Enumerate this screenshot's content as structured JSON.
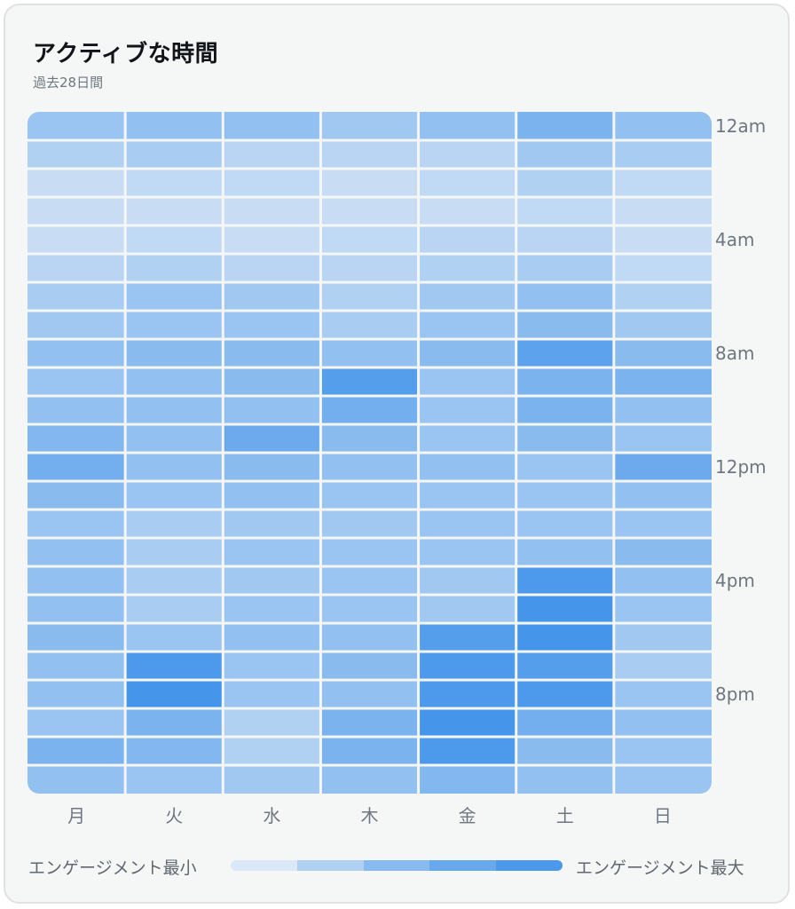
{
  "card": {
    "title": "アクティブな時間",
    "subtitle": "過去28日間"
  },
  "legend": {
    "min_label": "エンゲージメント最小",
    "max_label": "エンゲージメント最大",
    "colors": [
      "#dbe8f7",
      "#b0d0f2",
      "#87baee",
      "#68a8ec",
      "#4c98ea"
    ]
  },
  "colors": {
    "low": "#dfeaf6",
    "high": "#4595ea",
    "axis_text": "#6e7780"
  },
  "chart_data": {
    "type": "heatmap",
    "title": "アクティブな時間",
    "subtitle": "過去28日間",
    "x_categories": [
      "月",
      "火",
      "水",
      "木",
      "金",
      "土",
      "日"
    ],
    "y_tick_labels": [
      "12am",
      "4am",
      "8am",
      "12pm",
      "4pm",
      "8pm"
    ],
    "y_tick_every": 4,
    "value_range": [
      0,
      1
    ],
    "values": [
      [
        0.45,
        0.5,
        0.5,
        0.4,
        0.5,
        0.65,
        0.5
      ],
      [
        0.3,
        0.35,
        0.25,
        0.25,
        0.25,
        0.4,
        0.35
      ],
      [
        0.15,
        0.2,
        0.2,
        0.15,
        0.2,
        0.3,
        0.2
      ],
      [
        0.15,
        0.15,
        0.15,
        0.15,
        0.15,
        0.2,
        0.15
      ],
      [
        0.15,
        0.2,
        0.15,
        0.2,
        0.25,
        0.25,
        0.15
      ],
      [
        0.25,
        0.3,
        0.25,
        0.25,
        0.3,
        0.35,
        0.2
      ],
      [
        0.35,
        0.45,
        0.4,
        0.3,
        0.4,
        0.5,
        0.3
      ],
      [
        0.4,
        0.45,
        0.45,
        0.35,
        0.45,
        0.55,
        0.4
      ],
      [
        0.5,
        0.55,
        0.55,
        0.5,
        0.55,
        0.85,
        0.55
      ],
      [
        0.45,
        0.5,
        0.55,
        0.9,
        0.45,
        0.65,
        0.65
      ],
      [
        0.5,
        0.5,
        0.5,
        0.7,
        0.45,
        0.65,
        0.5
      ],
      [
        0.6,
        0.5,
        0.75,
        0.55,
        0.45,
        0.55,
        0.45
      ],
      [
        0.7,
        0.5,
        0.55,
        0.5,
        0.5,
        0.45,
        0.75
      ],
      [
        0.55,
        0.45,
        0.5,
        0.45,
        0.45,
        0.45,
        0.5
      ],
      [
        0.45,
        0.35,
        0.4,
        0.4,
        0.45,
        0.45,
        0.45
      ],
      [
        0.5,
        0.35,
        0.45,
        0.45,
        0.45,
        0.5,
        0.55
      ],
      [
        0.5,
        0.35,
        0.4,
        0.45,
        0.4,
        0.95,
        0.5
      ],
      [
        0.5,
        0.35,
        0.45,
        0.45,
        0.4,
        1.0,
        0.45
      ],
      [
        0.55,
        0.45,
        0.5,
        0.5,
        0.9,
        1.0,
        0.4
      ],
      [
        0.5,
        0.95,
        0.45,
        0.55,
        0.95,
        0.9,
        0.35
      ],
      [
        0.5,
        1.0,
        0.45,
        0.5,
        0.95,
        0.95,
        0.45
      ],
      [
        0.45,
        0.65,
        0.3,
        0.65,
        1.0,
        0.7,
        0.5
      ],
      [
        0.65,
        0.6,
        0.3,
        0.65,
        0.95,
        0.55,
        0.45
      ],
      [
        0.5,
        0.45,
        0.4,
        0.5,
        0.6,
        0.5,
        0.45
      ]
    ]
  }
}
